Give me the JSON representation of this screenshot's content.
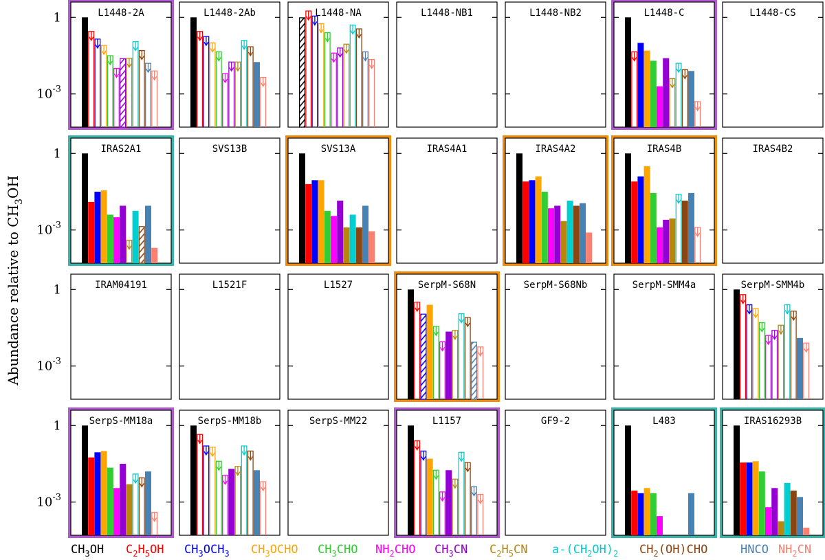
{
  "chart_data": {
    "type": "bar",
    "title": "",
    "ylabel": "Abundance relative to CH3OH",
    "yscale": "log",
    "ylim_log10": [
      -4.3,
      0.6
    ],
    "ytick_labels": [
      {
        "log10": 0,
        "label": "1"
      },
      {
        "log10": -3,
        "label": "10-3"
      }
    ],
    "grid_rows": 4,
    "grid_cols": 7,
    "colors": {
      "purple": "#b05ad0",
      "teal": "#3bb3aa",
      "orange": "#f08c12"
    },
    "species": [
      {
        "label": "CH3OH",
        "color": "#000000"
      },
      {
        "label": "C2H5OH",
        "color": "#ff0000"
      },
      {
        "label": "CH3OCH3",
        "color": "#0000ff"
      },
      {
        "label": "CH3OCHO",
        "color": "#ffa500"
      },
      {
        "label": "CH3CHO",
        "color": "#32cd32"
      },
      {
        "label": "NH2CHO",
        "color": "#ff00ff"
      },
      {
        "label": "CH3CN",
        "color": "#9400d3"
      },
      {
        "label": "C2H5CN",
        "color": "#b8860b"
      },
      {
        "label": "a-(CH2OH)2",
        "color": "#00ced1"
      },
      {
        "label": "CH2(OH)CHO",
        "color": "#8b4513"
      },
      {
        "label": "HNCO",
        "color": "#4682b4"
      },
      {
        "label": "NH2CN",
        "color": "#fa8072"
      }
    ],
    "bar_style_note": "values are log10 abundances; null = not shown; s: f=filled, u=upper limit (open bar with arrow), h=hatched",
    "sources": [
      {
        "name": "L1448-2A",
        "frame": "purple",
        "bars": [
          {
            "v": 0,
            "s": "f"
          },
          {
            "v": -0.55,
            "s": "u"
          },
          {
            "v": -0.85,
            "s": "u"
          },
          {
            "v": -1.1,
            "s": "u"
          },
          {
            "v": -1.5,
            "s": "u"
          },
          {
            "v": -2.0,
            "s": "u"
          },
          {
            "v": -1.6,
            "s": "h"
          },
          {
            "v": -1.6,
            "s": "u"
          },
          {
            "v": -0.95,
            "s": "u"
          },
          {
            "v": -1.3,
            "s": "u"
          },
          {
            "v": -1.8,
            "s": "u"
          },
          {
            "v": -2.1,
            "s": "u"
          }
        ]
      },
      {
        "name": "L1448-2Ab",
        "frame": "none",
        "bars": [
          {
            "v": 0,
            "s": "f"
          },
          {
            "v": -0.55,
            "s": "u"
          },
          {
            "v": -0.75,
            "s": "u"
          },
          {
            "v": -1.0,
            "s": "u"
          },
          {
            "v": -1.35,
            "s": "u"
          },
          {
            "v": -2.2,
            "s": "u"
          },
          {
            "v": -1.75,
            "s": "u"
          },
          {
            "v": -1.75,
            "s": "u"
          },
          {
            "v": -0.9,
            "s": "u"
          },
          {
            "v": -1.15,
            "s": "u"
          },
          {
            "v": -1.75,
            "s": "f"
          },
          {
            "v": -2.35,
            "s": "u"
          }
        ]
      },
      {
        "name": "L1448-NA",
        "frame": "none",
        "bars": [
          {
            "v": 0,
            "s": "h"
          },
          {
            "v": 0.25,
            "s": "u"
          },
          {
            "v": 0.05,
            "s": "u"
          },
          {
            "v": -0.25,
            "s": "u"
          },
          {
            "v": -0.6,
            "s": "u"
          },
          {
            "v": -1.4,
            "s": "u"
          },
          {
            "v": -1.2,
            "s": "u"
          },
          {
            "v": -1.05,
            "s": "u"
          },
          {
            "v": -0.3,
            "s": "u"
          },
          {
            "v": -0.45,
            "s": "u"
          },
          {
            "v": -1.35,
            "s": "u"
          },
          {
            "v": -1.65,
            "s": "u"
          }
        ]
      },
      {
        "name": "L1448-NB1",
        "frame": "none",
        "bars": []
      },
      {
        "name": "L1448-NB2",
        "frame": "none",
        "bars": []
      },
      {
        "name": "L1448-C",
        "frame": "purple",
        "bars": [
          {
            "v": 0,
            "s": "f"
          },
          {
            "v": -1.35,
            "s": "u"
          },
          {
            "v": -1.0,
            "s": "f"
          },
          {
            "v": -1.3,
            "s": "f"
          },
          {
            "v": -1.7,
            "s": "f"
          },
          {
            "v": -2.7,
            "s": "f"
          },
          {
            "v": -1.6,
            "s": "f"
          },
          {
            "v": -2.4,
            "s": "u"
          },
          {
            "v": -1.8,
            "s": "u"
          },
          {
            "v": -2.05,
            "s": "u"
          },
          {
            "v": -2.1,
            "s": "f"
          },
          {
            "v": -3.3,
            "s": "u"
          }
        ]
      },
      {
        "name": "L1448-CS",
        "frame": "none",
        "bars": []
      },
      {
        "name": "IRAS2A1",
        "frame": "teal",
        "bars": [
          {
            "v": 0,
            "s": "f"
          },
          {
            "v": -1.9,
            "s": "f"
          },
          {
            "v": -1.5,
            "s": "f"
          },
          {
            "v": -1.45,
            "s": "f"
          },
          {
            "v": -2.4,
            "s": "f"
          },
          {
            "v": -2.5,
            "s": "f"
          },
          {
            "v": -2.05,
            "s": "f"
          },
          {
            "v": -3.4,
            "s": "u"
          },
          {
            "v": -2.25,
            "s": "f"
          },
          {
            "v": -2.85,
            "s": "h"
          },
          {
            "v": -2.05,
            "s": "f"
          },
          {
            "v": -3.7,
            "s": "f"
          }
        ]
      },
      {
        "name": "SVS13B",
        "frame": "none",
        "bars": []
      },
      {
        "name": "SVS13A",
        "frame": "orange",
        "bars": [
          {
            "v": 0,
            "s": "f"
          },
          {
            "v": -1.2,
            "s": "f"
          },
          {
            "v": -1.05,
            "s": "f"
          },
          {
            "v": -1.05,
            "s": "f"
          },
          {
            "v": -2.25,
            "s": "f"
          },
          {
            "v": -2.45,
            "s": "f"
          },
          {
            "v": -1.85,
            "s": "f"
          },
          {
            "v": -2.9,
            "s": "f"
          },
          {
            "v": -2.4,
            "s": "f"
          },
          {
            "v": -2.9,
            "s": "f"
          },
          {
            "v": -2.05,
            "s": "f"
          },
          {
            "v": -3.05,
            "s": "f"
          }
        ]
      },
      {
        "name": "IRAS4A1",
        "frame": "none",
        "bars": []
      },
      {
        "name": "IRAS4A2",
        "frame": "orange",
        "bars": [
          {
            "v": 0,
            "s": "f"
          },
          {
            "v": -1.1,
            "s": "f"
          },
          {
            "v": -1.05,
            "s": "f"
          },
          {
            "v": -0.9,
            "s": "f"
          },
          {
            "v": -1.5,
            "s": "f"
          },
          {
            "v": -2.15,
            "s": "f"
          },
          {
            "v": -2.05,
            "s": "f"
          },
          {
            "v": -2.65,
            "s": "f"
          },
          {
            "v": -1.85,
            "s": "f"
          },
          {
            "v": -2.05,
            "s": "f"
          },
          {
            "v": -1.95,
            "s": "f"
          },
          {
            "v": -3.1,
            "s": "f"
          }
        ]
      },
      {
        "name": "IRAS4B",
        "frame": "orange",
        "bars": [
          {
            "v": 0,
            "s": "f"
          },
          {
            "v": -1.1,
            "s": "f"
          },
          {
            "v": -0.9,
            "s": "f"
          },
          {
            "v": -0.5,
            "s": "f"
          },
          {
            "v": -1.55,
            "s": "f"
          },
          {
            "v": -2.9,
            "s": "f"
          },
          {
            "v": -2.6,
            "s": "f"
          },
          {
            "v": -2.55,
            "s": "f"
          },
          {
            "v": -1.6,
            "s": "u"
          },
          {
            "v": -1.85,
            "s": "f"
          },
          {
            "v": -1.55,
            "s": "f"
          },
          {
            "v": -2.9,
            "s": "u"
          }
        ]
      },
      {
        "name": "IRAS4B2",
        "frame": "none",
        "bars": []
      },
      {
        "name": "IRAM04191",
        "frame": "none",
        "bars": []
      },
      {
        "name": "L1521F",
        "frame": "none",
        "bars": []
      },
      {
        "name": "L1527",
        "frame": "none",
        "bars": []
      },
      {
        "name": "SerpM-S68N",
        "frame": "orange",
        "bars": [
          {
            "v": 0,
            "s": "f"
          },
          {
            "v": -0.5,
            "s": "u"
          },
          {
            "v": -0.95,
            "s": "h"
          },
          {
            "v": -0.6,
            "s": "f"
          },
          {
            "v": -1.45,
            "s": "u"
          },
          {
            "v": -2.05,
            "s": "u"
          },
          {
            "v": -1.65,
            "s": "f"
          },
          {
            "v": -1.6,
            "s": "u"
          },
          {
            "v": -0.95,
            "s": "u"
          },
          {
            "v": -1.1,
            "s": "u"
          },
          {
            "v": -2.05,
            "s": "h"
          },
          {
            "v": -2.25,
            "s": "u"
          }
        ]
      },
      {
        "name": "SerpM-S68Nb",
        "frame": "none",
        "bars": []
      },
      {
        "name": "SerpM-SMM4a",
        "frame": "none",
        "bars": []
      },
      {
        "name": "SerpM-SMM4b",
        "frame": "none",
        "bars": [
          {
            "v": 0,
            "s": "f"
          },
          {
            "v": -0.2,
            "s": "u"
          },
          {
            "v": -0.6,
            "s": "u"
          },
          {
            "v": -0.75,
            "s": "u"
          },
          {
            "v": -1.3,
            "s": "u"
          },
          {
            "v": -1.8,
            "s": "u"
          },
          {
            "v": -1.6,
            "s": "u"
          },
          {
            "v": -1.4,
            "s": "u"
          },
          {
            "v": -0.6,
            "s": "u"
          },
          {
            "v": -0.85,
            "s": "u"
          },
          {
            "v": -1.9,
            "s": "f"
          },
          {
            "v": -2.1,
            "s": "u"
          }
        ]
      },
      {
        "name": "SerpS-MM18a",
        "frame": "purple",
        "bars": [
          {
            "v": 0,
            "s": "f"
          },
          {
            "v": -1.25,
            "s": "f"
          },
          {
            "v": -1.05,
            "s": "f"
          },
          {
            "v": -1.0,
            "s": "f"
          },
          {
            "v": -1.65,
            "s": "f"
          },
          {
            "v": -2.45,
            "s": "f"
          },
          {
            "v": -1.5,
            "s": "f"
          },
          {
            "v": -2.3,
            "s": "f"
          },
          {
            "v": -1.9,
            "s": "u"
          },
          {
            "v": -2.05,
            "s": "u"
          },
          {
            "v": -1.8,
            "s": "f"
          },
          {
            "v": -3.4,
            "s": "u"
          }
        ]
      },
      {
        "name": "SerpS-MM18b",
        "frame": "none",
        "bars": [
          {
            "v": 0,
            "s": "f"
          },
          {
            "v": -0.35,
            "s": "u"
          },
          {
            "v": -0.8,
            "s": "u"
          },
          {
            "v": -0.85,
            "s": "u"
          },
          {
            "v": -1.4,
            "s": "u"
          },
          {
            "v": -1.95,
            "s": "u"
          },
          {
            "v": -1.7,
            "s": "f"
          },
          {
            "v": -1.6,
            "s": "u"
          },
          {
            "v": -0.8,
            "s": "u"
          },
          {
            "v": -1.0,
            "s": "u"
          },
          {
            "v": -1.75,
            "s": "f"
          },
          {
            "v": -2.2,
            "s": "u"
          }
        ]
      },
      {
        "name": "SerpS-MM22",
        "frame": "none",
        "bars": []
      },
      {
        "name": "L1157",
        "frame": "purple",
        "bars": [
          {
            "v": 0,
            "s": "f"
          },
          {
            "v": -0.6,
            "s": "u"
          },
          {
            "v": -1.0,
            "s": "u"
          },
          {
            "v": -1.3,
            "s": "f"
          },
          {
            "v": -1.75,
            "s": "u"
          },
          {
            "v": -2.6,
            "s": "u"
          },
          {
            "v": -1.75,
            "s": "f"
          },
          {
            "v": -2.1,
            "s": "u"
          },
          {
            "v": -1.05,
            "s": "u"
          },
          {
            "v": -1.45,
            "s": "u"
          },
          {
            "v": -2.4,
            "s": "u"
          },
          {
            "v": -2.7,
            "s": "u"
          }
        ]
      },
      {
        "name": "GF9-2",
        "frame": "none",
        "bars": []
      },
      {
        "name": "L483",
        "frame": "teal",
        "bars": [
          {
            "v": 0,
            "s": "f"
          },
          {
            "v": -2.55,
            "s": "f"
          },
          {
            "v": -2.65,
            "s": "f"
          },
          {
            "v": -2.45,
            "s": "f"
          },
          {
            "v": -2.65,
            "s": "f"
          },
          {
            "v": -3.55,
            "s": "f"
          },
          null,
          null,
          null,
          null,
          {
            "v": -2.65,
            "s": "f"
          },
          null
        ]
      },
      {
        "name": "IRAS16293B",
        "frame": "teal",
        "bars": [
          {
            "v": 0,
            "s": "f"
          },
          {
            "v": -1.45,
            "s": "f"
          },
          {
            "v": -1.45,
            "s": "f"
          },
          {
            "v": -1.4,
            "s": "f"
          },
          {
            "v": -1.8,
            "s": "f"
          },
          {
            "v": -3.2,
            "s": "f"
          },
          {
            "v": -2.45,
            "s": "f"
          },
          {
            "v": -3.75,
            "s": "f"
          },
          {
            "v": -2.25,
            "s": "f"
          },
          {
            "v": -2.55,
            "s": "f"
          },
          {
            "v": -2.8,
            "s": "f"
          },
          {
            "v": -4.0,
            "s": "f"
          }
        ]
      }
    ]
  }
}
